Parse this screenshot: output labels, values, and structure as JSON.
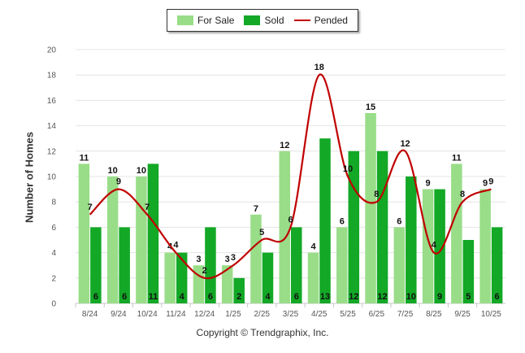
{
  "chart_data": {
    "type": "bar",
    "ylabel": "Number of Homes",
    "xlabel": "",
    "ylim": [
      0,
      20
    ],
    "yticks": [
      "0",
      "2",
      "4",
      "6",
      "8",
      "10",
      "12",
      "14",
      "16",
      "18",
      "20"
    ],
    "categories": [
      "8/24",
      "9/24",
      "10/24",
      "11/24",
      "12/24",
      "1/25",
      "2/25",
      "3/25",
      "4/25",
      "5/25",
      "6/25",
      "7/25",
      "8/25",
      "9/25",
      "10/25"
    ],
    "series": [
      {
        "name": "For Sale",
        "type": "bar",
        "color": "#99dd88",
        "values": [
          11,
          10,
          10,
          4,
          3,
          3,
          7,
          12,
          4,
          6,
          15,
          6,
          9,
          11,
          9
        ]
      },
      {
        "name": "Sold",
        "type": "bar",
        "color": "#13a826",
        "values": [
          6,
          6,
          11,
          4,
          6,
          2,
          4,
          6,
          13,
          12,
          12,
          10,
          9,
          5,
          6
        ]
      },
      {
        "name": "Pended",
        "type": "line",
        "color": "#c00000",
        "values": [
          7,
          9,
          7,
          4,
          2,
          3,
          5,
          6,
          18,
          10,
          8,
          12,
          4,
          8,
          9
        ]
      }
    ]
  },
  "copyright": "Copyright © Trendgraphix, Inc."
}
